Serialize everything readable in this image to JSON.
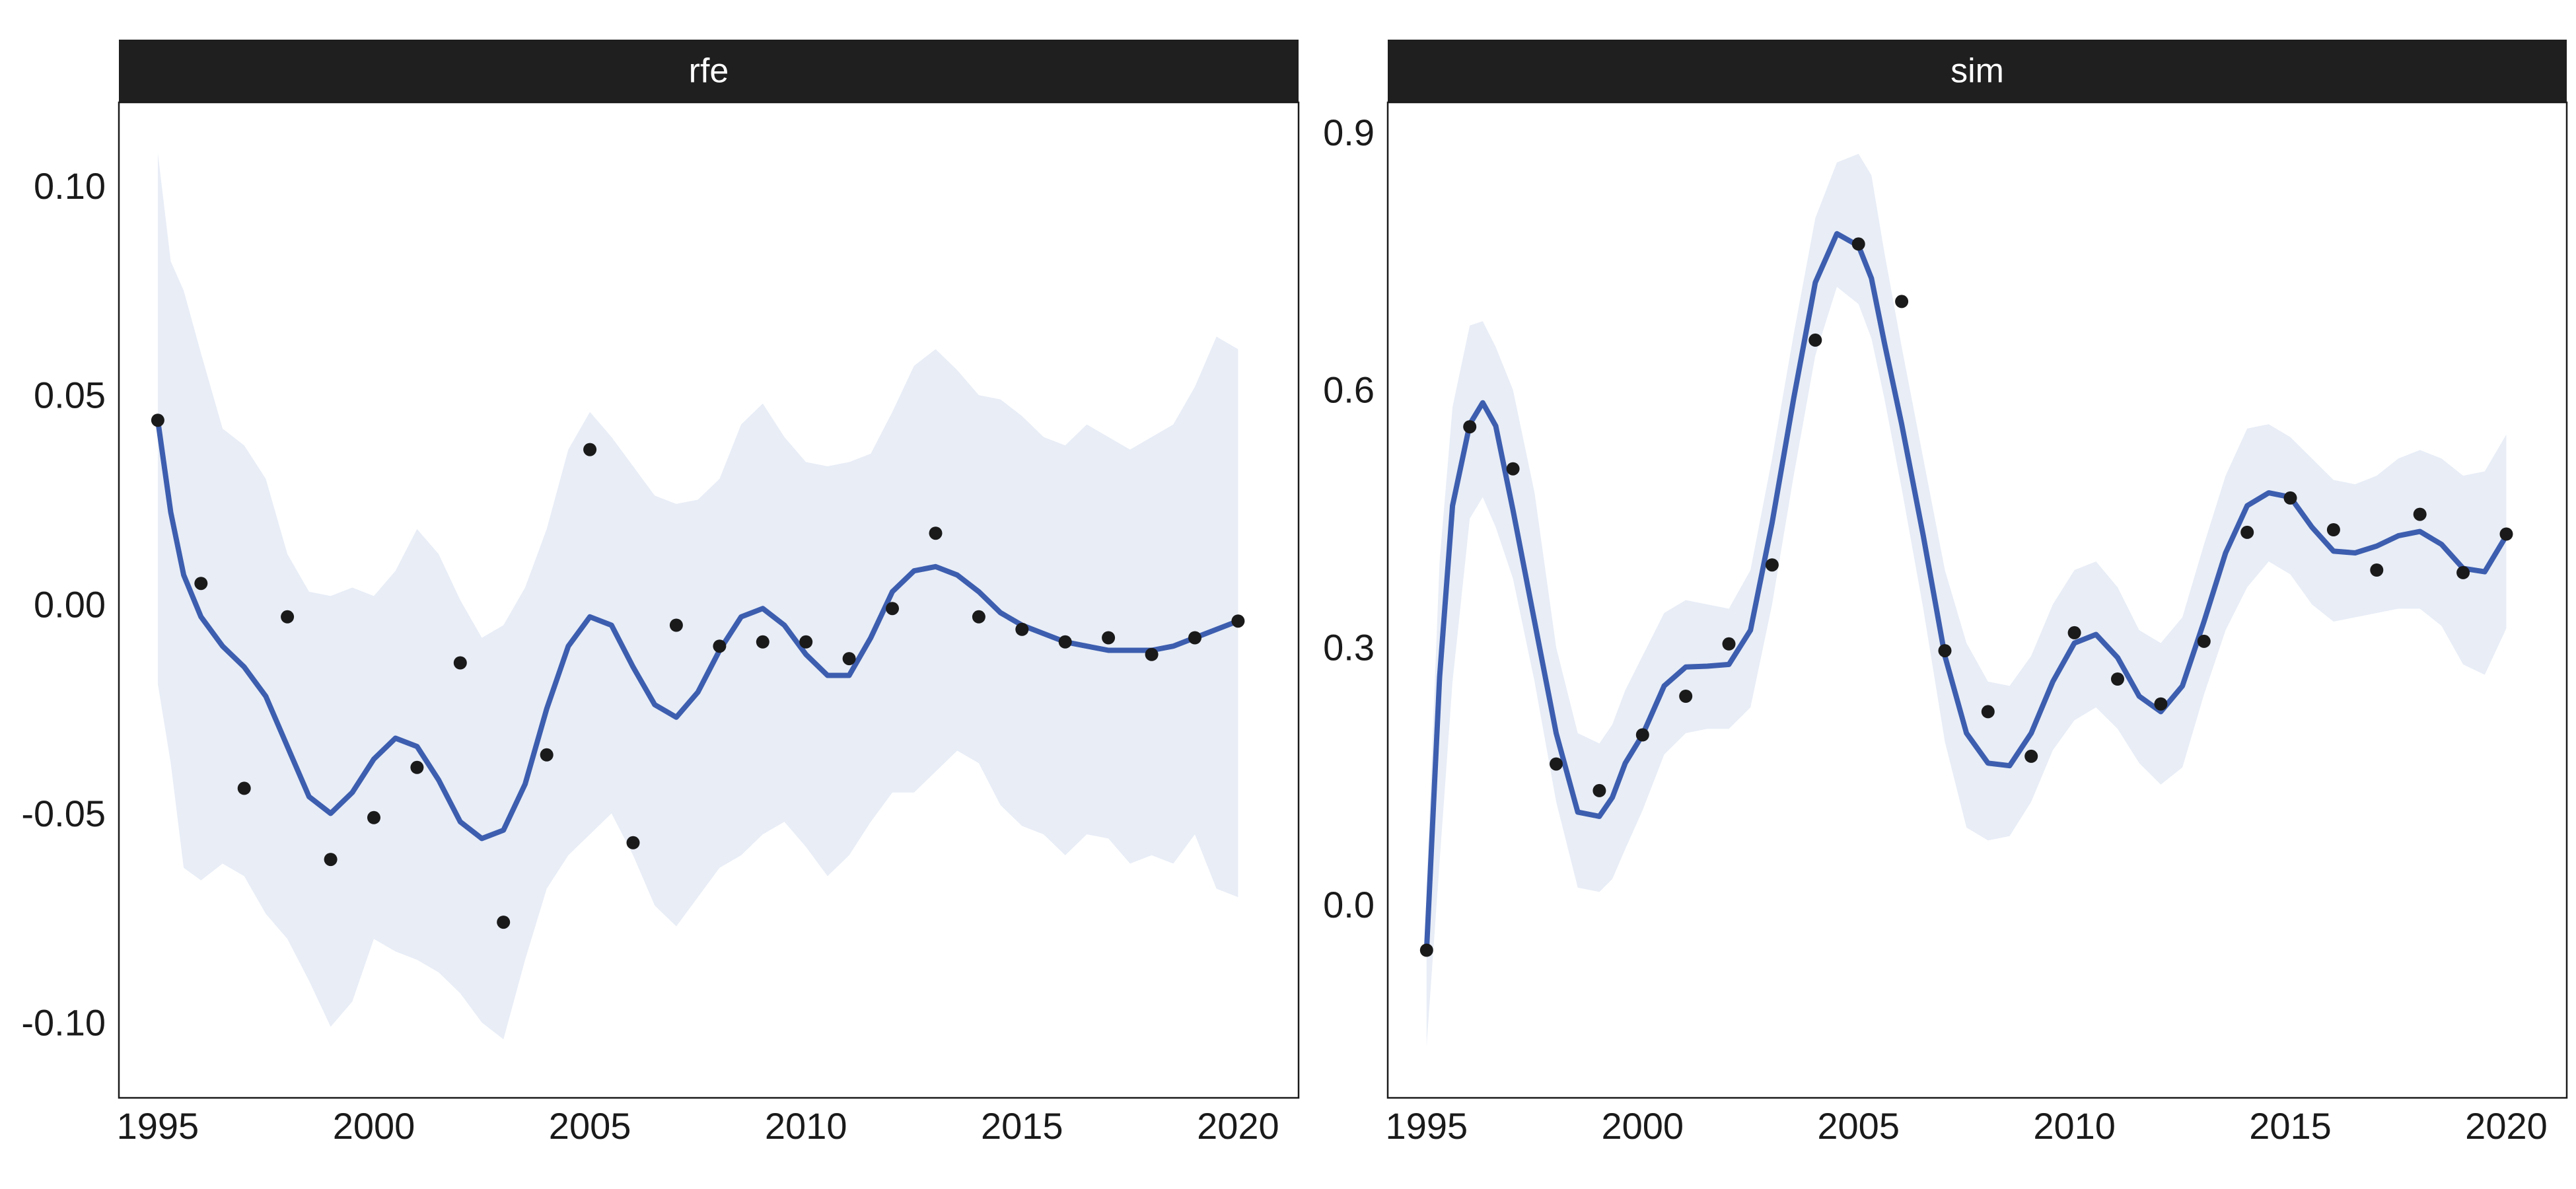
{
  "chart_data": {
    "type": "scatter",
    "layout": "faceted",
    "grid": false,
    "colors": {
      "strip": "#1f1f1f",
      "strip_text": "#ffffff",
      "line": "#3d5eaf",
      "ribbon": "#e8edf6",
      "points": "#1a1a1a",
      "panel_border": "#1a1a1a"
    },
    "panels": [
      {
        "title": "rfe",
        "xlim": [
          1994.1,
          2021.4
        ],
        "ylim": [
          -0.118,
          0.12
        ],
        "xticks": [
          1995,
          2000,
          2005,
          2010,
          2015,
          2020
        ],
        "xtick_labels": [
          "1995",
          "2000",
          "2005",
          "2010",
          "2015",
          "2020"
        ],
        "yticks": [
          0.1,
          0.05,
          0.0,
          -0.05,
          -0.1
        ],
        "ytick_labels": [
          "0.10",
          "0.05",
          "0.00",
          "-0.05",
          "-0.10"
        ],
        "points": {
          "x": [
            1995,
            1996,
            1997,
            1998,
            1999,
            2000,
            2001,
            2002,
            2003,
            2004,
            2005,
            2006,
            2007,
            2008,
            2009,
            2010,
            2011,
            2012,
            2013,
            2014,
            2015,
            2016,
            2017,
            2018,
            2019,
            2020
          ],
          "y": [
            0.044,
            0.005,
            -0.044,
            -0.003,
            -0.061,
            -0.051,
            -0.039,
            -0.014,
            -0.076,
            -0.036,
            0.037,
            -0.057,
            -0.005,
            -0.01,
            -0.009,
            -0.009,
            -0.013,
            -0.001,
            0.017,
            -0.003,
            -0.006,
            -0.009,
            -0.008,
            -0.012,
            -0.008,
            -0.004
          ]
        },
        "smooth": {
          "x": [
            1995,
            1995.3,
            1995.6,
            1996,
            1996.5,
            1997,
            1997.5,
            1998,
            1998.5,
            1999,
            1999.5,
            2000,
            2000.5,
            2001,
            2001.5,
            2002,
            2002.5,
            2003,
            2003.5,
            2004,
            2004.5,
            2005,
            2005.5,
            2006,
            2006.5,
            2007,
            2007.5,
            2008,
            2008.5,
            2009,
            2009.5,
            2010,
            2010.5,
            2011,
            2011.5,
            2012,
            2012.5,
            2013,
            2013.5,
            2014,
            2014.5,
            2015,
            2015.5,
            2016,
            2016.5,
            2017,
            2017.5,
            2018,
            2018.5,
            2019,
            2019.5,
            2020
          ],
          "y": [
            0.044,
            0.022,
            0.007,
            -0.003,
            -0.01,
            -0.015,
            -0.022,
            -0.034,
            -0.046,
            -0.05,
            -0.045,
            -0.037,
            -0.032,
            -0.034,
            -0.042,
            -0.052,
            -0.056,
            -0.054,
            -0.043,
            -0.025,
            -0.01,
            -0.003,
            -0.005,
            -0.015,
            -0.024,
            -0.027,
            -0.021,
            -0.011,
            -0.003,
            -0.001,
            -0.005,
            -0.012,
            -0.017,
            -0.017,
            -0.008,
            0.003,
            0.008,
            0.009,
            0.007,
            0.003,
            -0.002,
            -0.005,
            -0.007,
            -0.009,
            -0.01,
            -0.011,
            -0.011,
            -0.011,
            -0.01,
            -0.008,
            -0.006,
            -0.004
          ],
          "lower": [
            -0.019,
            -0.038,
            -0.063,
            -0.066,
            -0.062,
            -0.065,
            -0.074,
            -0.08,
            -0.09,
            -0.101,
            -0.095,
            -0.08,
            -0.083,
            -0.085,
            -0.088,
            -0.093,
            -0.1,
            -0.104,
            -0.085,
            -0.068,
            -0.06,
            -0.055,
            -0.05,
            -0.06,
            -0.072,
            -0.077,
            -0.07,
            -0.063,
            -0.06,
            -0.055,
            -0.052,
            -0.058,
            -0.065,
            -0.06,
            -0.052,
            -0.045,
            -0.045,
            -0.04,
            -0.035,
            -0.038,
            -0.048,
            -0.053,
            -0.055,
            -0.06,
            -0.055,
            -0.056,
            -0.062,
            -0.06,
            -0.062,
            -0.055,
            -0.068,
            -0.07
          ],
          "upper": [
            0.108,
            0.082,
            0.075,
            0.06,
            0.042,
            0.038,
            0.03,
            0.012,
            0.003,
            0.002,
            0.004,
            0.002,
            0.008,
            0.018,
            0.012,
            0.001,
            -0.008,
            -0.005,
            0.004,
            0.018,
            0.037,
            0.046,
            0.04,
            0.033,
            0.026,
            0.024,
            0.025,
            0.03,
            0.043,
            0.048,
            0.04,
            0.034,
            0.033,
            0.034,
            0.036,
            0.046,
            0.057,
            0.061,
            0.056,
            0.05,
            0.049,
            0.045,
            0.04,
            0.038,
            0.043,
            0.04,
            0.037,
            0.04,
            0.043,
            0.052,
            0.064,
            0.061
          ]
        }
      },
      {
        "title": "sim",
        "xlim": [
          1994.1,
          2021.4
        ],
        "ylim": [
          -0.225,
          0.935
        ],
        "xticks": [
          1995,
          2000,
          2005,
          2010,
          2015,
          2020
        ],
        "xtick_labels": [
          "1995",
          "2000",
          "2005",
          "2010",
          "2015",
          "2020"
        ],
        "yticks": [
          0.9,
          0.6,
          0.3,
          0.0
        ],
        "ytick_labels": [
          "0.9",
          "0.6",
          "0.3",
          "0.0"
        ],
        "points": {
          "x": [
            1995,
            1996,
            1997,
            1998,
            1999,
            2000,
            2001,
            2002,
            2003,
            2004,
            2005,
            2006,
            2007,
            2008,
            2009,
            2010,
            2011,
            2012,
            2013,
            2014,
            2015,
            2016,
            2017,
            2018,
            2019,
            2020
          ],
          "y": [
            -0.053,
            0.557,
            0.508,
            0.164,
            0.133,
            0.198,
            0.243,
            0.304,
            0.396,
            0.658,
            0.77,
            0.703,
            0.296,
            0.225,
            0.173,
            0.317,
            0.263,
            0.234,
            0.307,
            0.434,
            0.474,
            0.437,
            0.39,
            0.455,
            0.387,
            0.432
          ]
        },
        "smooth": {
          "x": [
            1995,
            1995.3,
            1995.6,
            1996,
            1996.3,
            1996.6,
            1997,
            1997.5,
            1998,
            1998.5,
            1999,
            1999.3,
            1999.6,
            2000,
            2000.5,
            2001,
            2001.5,
            2002,
            2002.5,
            2003,
            2003.5,
            2004,
            2004.5,
            2005,
            2005.3,
            2005.6,
            2006,
            2006.5,
            2007,
            2007.5,
            2008,
            2008.5,
            2009,
            2009.5,
            2010,
            2010.5,
            2011,
            2011.5,
            2012,
            2012.5,
            2013,
            2013.5,
            2014,
            2014.5,
            2015,
            2015.5,
            2016,
            2016.5,
            2017,
            2017.5,
            2018,
            2018.5,
            2019,
            2019.5,
            2020
          ],
          "y": [
            -0.053,
            0.265,
            0.465,
            0.56,
            0.585,
            0.558,
            0.46,
            0.33,
            0.2,
            0.108,
            0.103,
            0.125,
            0.165,
            0.198,
            0.255,
            0.277,
            0.278,
            0.28,
            0.32,
            0.445,
            0.59,
            0.725,
            0.782,
            0.768,
            0.73,
            0.655,
            0.56,
            0.43,
            0.29,
            0.2,
            0.165,
            0.162,
            0.2,
            0.26,
            0.305,
            0.315,
            0.288,
            0.243,
            0.225,
            0.255,
            0.33,
            0.41,
            0.465,
            0.48,
            0.475,
            0.44,
            0.412,
            0.41,
            0.418,
            0.43,
            0.435,
            0.42,
            0.392,
            0.388,
            0.43
          ],
          "lower": [
            -0.165,
            0.05,
            0.26,
            0.45,
            0.475,
            0.44,
            0.38,
            0.26,
            0.12,
            0.02,
            0.015,
            0.03,
            0.065,
            0.11,
            0.175,
            0.2,
            0.205,
            0.205,
            0.23,
            0.35,
            0.5,
            0.64,
            0.72,
            0.7,
            0.66,
            0.59,
            0.485,
            0.345,
            0.19,
            0.09,
            0.075,
            0.08,
            0.12,
            0.18,
            0.215,
            0.23,
            0.205,
            0.165,
            0.14,
            0.16,
            0.245,
            0.32,
            0.37,
            0.4,
            0.385,
            0.35,
            0.33,
            0.335,
            0.34,
            0.345,
            0.345,
            0.325,
            0.28,
            0.268,
            0.322
          ],
          "upper": [
            0.02,
            0.4,
            0.58,
            0.675,
            0.68,
            0.65,
            0.6,
            0.48,
            0.3,
            0.2,
            0.188,
            0.21,
            0.25,
            0.29,
            0.34,
            0.355,
            0.35,
            0.345,
            0.39,
            0.52,
            0.665,
            0.8,
            0.865,
            0.875,
            0.85,
            0.76,
            0.65,
            0.52,
            0.39,
            0.305,
            0.26,
            0.255,
            0.29,
            0.35,
            0.39,
            0.4,
            0.37,
            0.32,
            0.305,
            0.335,
            0.42,
            0.5,
            0.555,
            0.56,
            0.545,
            0.52,
            0.495,
            0.49,
            0.5,
            0.52,
            0.53,
            0.52,
            0.5,
            0.505,
            0.548
          ]
        }
      }
    ]
  }
}
